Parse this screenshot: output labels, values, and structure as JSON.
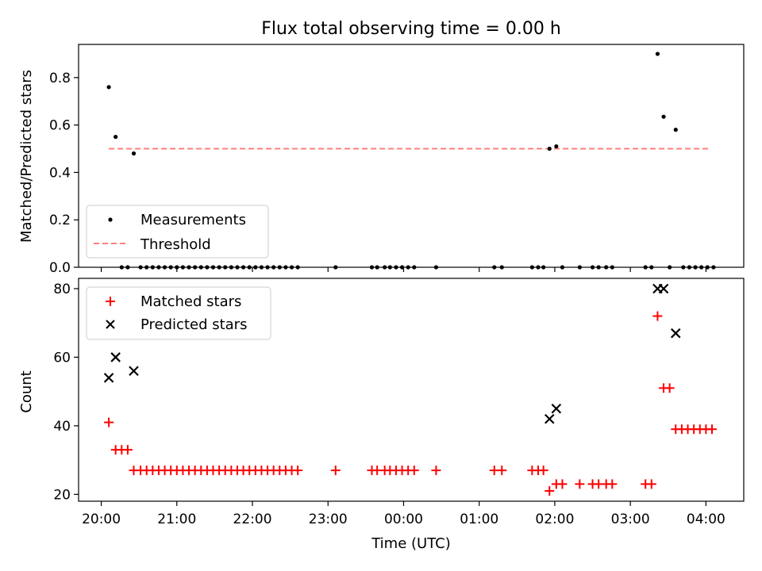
{
  "title": "Flux total observing time = 0.00 h",
  "xlabel": "Time (UTC)",
  "chart_data": [
    {
      "type": "scatter",
      "ylabel": "Matched/Predicted stars",
      "xlim_hours": [
        -0.3,
        8.5
      ],
      "ylim": [
        0,
        0.94
      ],
      "yticks": [
        0.0,
        0.2,
        0.4,
        0.6,
        0.8
      ],
      "ytick_labels": [
        "0.0",
        "0.2",
        "0.4",
        "0.6",
        "0.8"
      ],
      "legend": {
        "placement": "lower-left",
        "entries": [
          "Measurements",
          "Threshold"
        ]
      },
      "threshold": {
        "name": "Threshold",
        "value": 0.5,
        "x_start": 0.1,
        "x_end": 8.05,
        "color": "#ff7f7f"
      },
      "measurements": {
        "name": "Measurements",
        "color": "#000000",
        "points": [
          [
            0.1,
            0.76
          ],
          [
            0.19,
            0.55
          ],
          [
            0.27,
            0
          ],
          [
            0.35,
            0
          ],
          [
            0.43,
            0.48
          ],
          [
            0.52,
            0
          ],
          [
            0.6,
            0
          ],
          [
            0.68,
            0
          ],
          [
            0.76,
            0
          ],
          [
            0.84,
            0
          ],
          [
            0.92,
            0
          ],
          [
            1.0,
            0
          ],
          [
            1.08,
            0
          ],
          [
            1.16,
            0
          ],
          [
            1.24,
            0
          ],
          [
            1.32,
            0
          ],
          [
            1.4,
            0
          ],
          [
            1.48,
            0
          ],
          [
            1.56,
            0
          ],
          [
            1.64,
            0
          ],
          [
            1.72,
            0
          ],
          [
            1.8,
            0
          ],
          [
            1.88,
            0
          ],
          [
            1.96,
            0
          ],
          [
            2.04,
            0
          ],
          [
            2.12,
            0
          ],
          [
            2.2,
            0
          ],
          [
            2.28,
            0
          ],
          [
            2.36,
            0
          ],
          [
            2.44,
            0
          ],
          [
            2.52,
            0
          ],
          [
            2.6,
            0
          ],
          [
            3.1,
            0
          ],
          [
            3.58,
            0
          ],
          [
            3.65,
            0
          ],
          [
            3.75,
            0
          ],
          [
            3.82,
            0
          ],
          [
            3.9,
            0
          ],
          [
            3.98,
            0
          ],
          [
            4.06,
            0
          ],
          [
            4.14,
            0
          ],
          [
            4.43,
            0
          ],
          [
            5.2,
            0
          ],
          [
            5.3,
            0
          ],
          [
            5.7,
            0
          ],
          [
            5.78,
            0
          ],
          [
            5.85,
            0
          ],
          [
            5.93,
            0.5
          ],
          [
            6.02,
            0.51
          ],
          [
            6.1,
            0
          ],
          [
            6.33,
            0
          ],
          [
            6.5,
            0
          ],
          [
            6.58,
            0
          ],
          [
            6.68,
            0
          ],
          [
            6.76,
            0
          ],
          [
            7.2,
            0
          ],
          [
            7.28,
            0
          ],
          [
            7.36,
            0.9
          ],
          [
            7.44,
            0.635
          ],
          [
            7.52,
            0
          ],
          [
            7.6,
            0.58
          ],
          [
            7.7,
            0
          ],
          [
            7.78,
            0
          ],
          [
            7.86,
            0
          ],
          [
            7.94,
            0
          ],
          [
            8.02,
            0
          ],
          [
            8.1,
            0
          ]
        ]
      }
    },
    {
      "type": "scatter",
      "ylabel": "Count",
      "xlim_hours": [
        -0.3,
        8.5
      ],
      "ylim": [
        18,
        83
      ],
      "yticks": [
        20,
        40,
        60,
        80
      ],
      "ytick_labels": [
        "20",
        "40",
        "60",
        "80"
      ],
      "legend": {
        "placement": "top-left",
        "entries": [
          "Matched stars",
          "Predicted stars"
        ]
      },
      "xticks_hours": [
        0,
        1,
        2,
        3,
        4,
        5,
        6,
        7,
        8
      ],
      "xtick_labels": [
        "20:00",
        "21:00",
        "22:00",
        "23:00",
        "00:00",
        "01:00",
        "02:00",
        "03:00",
        "04:00"
      ],
      "series": [
        {
          "name": "Matched stars",
          "marker": "plus",
          "color": "#ff0000",
          "points": [
            [
              0.1,
              41
            ],
            [
              0.19,
              33
            ],
            [
              0.27,
              33
            ],
            [
              0.35,
              33
            ],
            [
              0.43,
              27
            ],
            [
              0.52,
              27
            ],
            [
              0.6,
              27
            ],
            [
              0.68,
              27
            ],
            [
              0.76,
              27
            ],
            [
              0.84,
              27
            ],
            [
              0.92,
              27
            ],
            [
              1.0,
              27
            ],
            [
              1.08,
              27
            ],
            [
              1.16,
              27
            ],
            [
              1.24,
              27
            ],
            [
              1.32,
              27
            ],
            [
              1.4,
              27
            ],
            [
              1.48,
              27
            ],
            [
              1.56,
              27
            ],
            [
              1.64,
              27
            ],
            [
              1.72,
              27
            ],
            [
              1.8,
              27
            ],
            [
              1.88,
              27
            ],
            [
              1.96,
              27
            ],
            [
              2.04,
              27
            ],
            [
              2.12,
              27
            ],
            [
              2.2,
              27
            ],
            [
              2.28,
              27
            ],
            [
              2.36,
              27
            ],
            [
              2.44,
              27
            ],
            [
              2.52,
              27
            ],
            [
              2.6,
              27
            ],
            [
              3.1,
              27
            ],
            [
              3.58,
              27
            ],
            [
              3.65,
              27
            ],
            [
              3.75,
              27
            ],
            [
              3.82,
              27
            ],
            [
              3.9,
              27
            ],
            [
              3.98,
              27
            ],
            [
              4.06,
              27
            ],
            [
              4.14,
              27
            ],
            [
              4.43,
              27
            ],
            [
              5.2,
              27
            ],
            [
              5.3,
              27
            ],
            [
              5.7,
              27
            ],
            [
              5.78,
              27
            ],
            [
              5.85,
              27
            ],
            [
              5.93,
              21
            ],
            [
              6.02,
              23
            ],
            [
              6.1,
              23
            ],
            [
              6.33,
              23
            ],
            [
              6.5,
              23
            ],
            [
              6.58,
              23
            ],
            [
              6.68,
              23
            ],
            [
              6.76,
              23
            ],
            [
              7.2,
              23
            ],
            [
              7.28,
              23
            ],
            [
              7.36,
              72
            ],
            [
              7.44,
              51
            ],
            [
              7.52,
              51
            ],
            [
              7.6,
              39
            ],
            [
              7.68,
              39
            ],
            [
              7.76,
              39
            ],
            [
              7.84,
              39
            ],
            [
              7.92,
              39
            ],
            [
              8.0,
              39
            ],
            [
              8.08,
              39
            ]
          ]
        },
        {
          "name": "Predicted stars",
          "marker": "x",
          "color": "#000000",
          "points": [
            [
              0.1,
              54
            ],
            [
              0.19,
              60
            ],
            [
              0.43,
              56
            ],
            [
              5.93,
              42
            ],
            [
              6.02,
              45
            ],
            [
              7.36,
              80
            ],
            [
              7.44,
              80
            ],
            [
              7.6,
              67
            ]
          ]
        }
      ]
    }
  ]
}
